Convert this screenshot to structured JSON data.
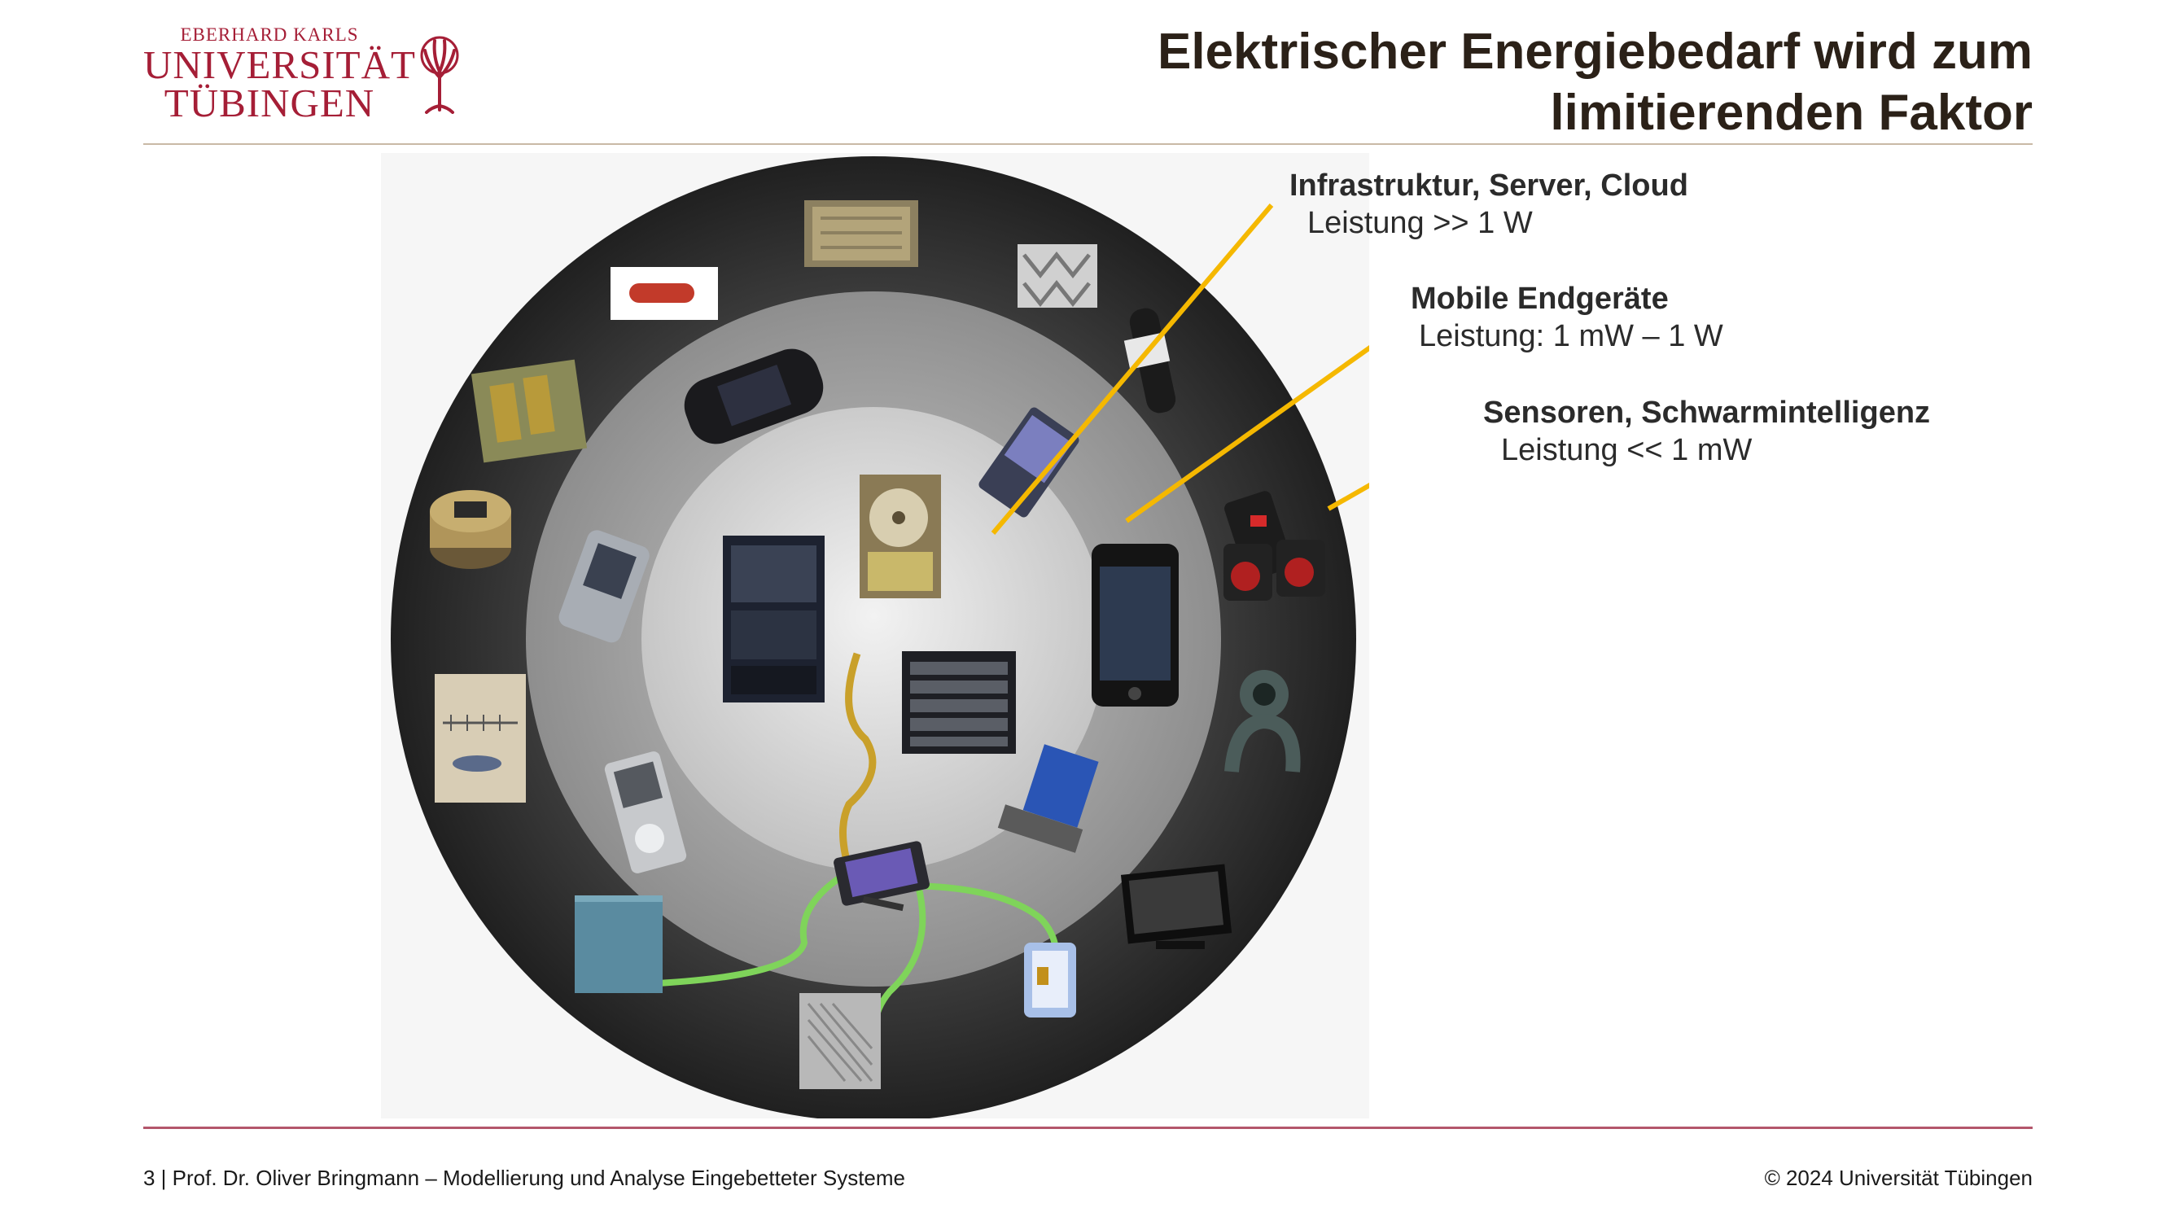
{
  "logo": {
    "line1": "EBERHARD KARLS",
    "line2": "UNIVERSITÄT",
    "line3": "TÜBINGEN"
  },
  "title": {
    "line1": "Elektrischer Energiebedarf wird zum",
    "line2": "limitierenden Faktor"
  },
  "labels": [
    {
      "heading": "Infrastruktur, Server, Cloud",
      "detail": "Leistung >> 1 W"
    },
    {
      "heading": "Mobile Endgeräte",
      "detail": "Leistung: 1 mW – 1 W"
    },
    {
      "heading": "Sensoren, Schwarmintelligenz",
      "detail": "Leistung << 1 mW"
    }
  ],
  "footer": {
    "left": "3 | Prof. Dr. Oliver Bringmann – Modellierung und Analyse Eingebetteter Systeme",
    "right": "© 2024 Universität Tübingen"
  },
  "colors": {
    "brand": "#a51e36",
    "leader_lines": "#f5b800",
    "outer_ring": "#3a3a3a",
    "middle_ring": "#8a8a8a",
    "inner_disc": "#d8d8d8"
  },
  "devices": {
    "inner": [
      "server-rack-icon",
      "hard-disk-icon",
      "blade-server-icon"
    ],
    "middle": [
      "game-console-icon",
      "smartphone-icon",
      "flip-phone-icon",
      "mp3-player-icon",
      "laptop-icon",
      "tablet-icon",
      "pda-icon"
    ],
    "outer": [
      "chip-icon",
      "sensor-icon",
      "battery-pack-icon",
      "circuit-cube-icon",
      "micro-sensor-icon",
      "coin-battery-icon",
      "ruler-sensor-icon",
      "blue-module-icon",
      "heatsink-icon",
      "rfid-tag-icon",
      "monitor-icon",
      "webcam-icon",
      "speaker-icon",
      "wristband-icon"
    ]
  }
}
